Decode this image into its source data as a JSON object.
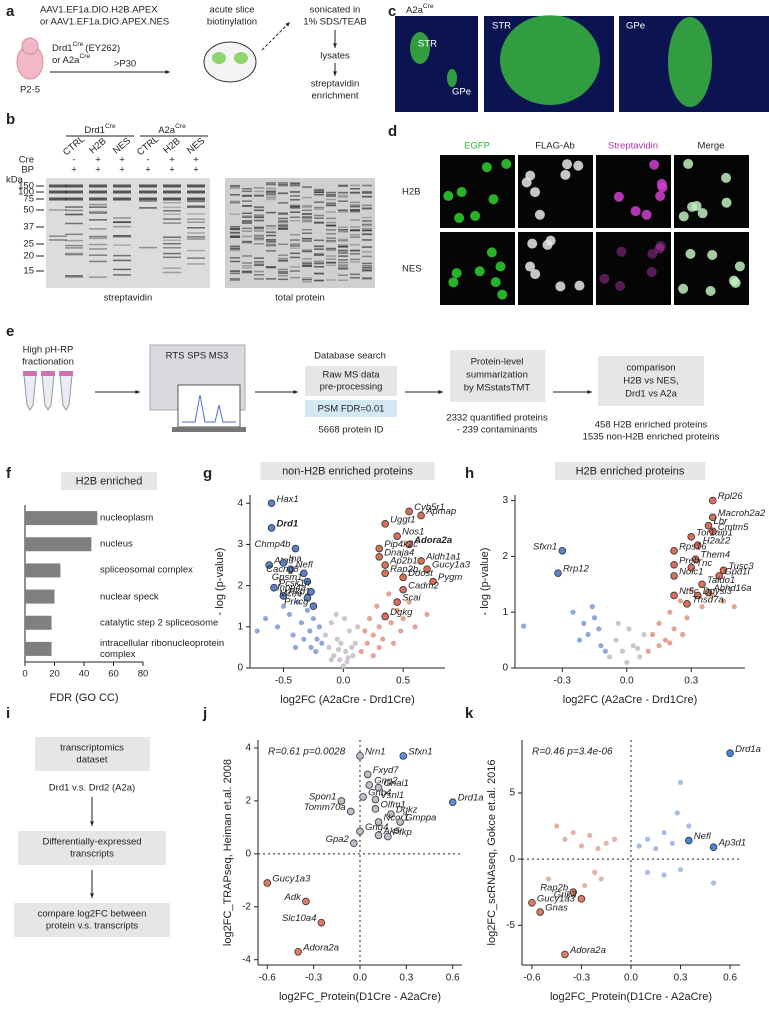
{
  "panel_letters": [
    "a",
    "b",
    "c",
    "d",
    "e",
    "f",
    "g",
    "h",
    "i",
    "j",
    "k"
  ],
  "a": {
    "vectors": [
      "AAV1.EF1a.DIO.H2B.APEX",
      "or AAV1.EF1a.DIO.APEX.NES"
    ],
    "mouse_lines": [
      {
        "text": "Drd1",
        "sup": "Cre",
        "after": "(EY262)"
      },
      {
        "text": "or A2a",
        "sup": "Cre"
      }
    ],
    "age": "P2-5",
    "adult_age": ">P30",
    "slice_step": [
      "acute slice",
      "biotinylation"
    ],
    "lysis_step": [
      "sonicated in",
      "1% SDS/TEAB"
    ],
    "lysate_step": "lysates",
    "enrichment_step": [
      "streptavidin",
      "enrichment"
    ]
  },
  "b": {
    "groups": [
      {
        "text": "Drd1",
        "sup": "Cre"
      },
      {
        "text": "A2a",
        "sup": "Cre"
      }
    ],
    "lanes": [
      "CTRL",
      "H2B",
      "NES",
      "CTRL",
      "H2B",
      "NES"
    ],
    "row_labels": [
      "Cre",
      "BP"
    ],
    "cre": [
      "-",
      "+",
      "+",
      "-",
      "+",
      "+"
    ],
    "bp": [
      "+",
      "+",
      "+",
      "+",
      "+",
      "+"
    ],
    "unit": "kDa",
    "markers": [
      150,
      100,
      75,
      50,
      37,
      25,
      20,
      15
    ],
    "captions": [
      "streptavidin",
      "total protein"
    ]
  },
  "c": {
    "line": {
      "text": "A2a",
      "sup": "Cre"
    },
    "labels": [
      "STR",
      "GPe",
      "STR",
      "GPe"
    ]
  },
  "d": {
    "columns": [
      "EGFP",
      "FLAG-Ab",
      "Streptavidin",
      "Merge"
    ],
    "rows": [
      "H2B",
      "NES"
    ]
  },
  "e": {
    "fractionation": [
      "High pH-RP",
      "fractionation"
    ],
    "instrument": "RTS SPS MS3",
    "search_title": "Database search",
    "preprocessing": [
      "Raw MS data",
      "pre-processing"
    ],
    "fdr": "PSM FDR=0.01",
    "protein_id": "5668 protein ID",
    "summarization": [
      "Protein-level",
      "summarization",
      "by MSstatsTMT"
    ],
    "quantified": [
      "2332 quantified proteins",
      "- 239 contaminants"
    ],
    "comparison": [
      "comparison",
      "H2B vs NES,",
      "Drd1 vs A2a"
    ],
    "results": [
      "458 H2B enriched proteins",
      "1535 non-H2B enriched proteins"
    ]
  },
  "i": {
    "dataset": [
      "transcriptomics",
      "dataset"
    ],
    "contrast": "Drd1 v.s. Drd2 (A2a)",
    "de": [
      "Differentially-expressed",
      "transcripts"
    ],
    "compare": [
      "compare log2FC between",
      "protein v.s. transcripts"
    ]
  },
  "chart_data": [
    {
      "type": "hbar",
      "title": "H2B enriched",
      "x_label": "FDR (GO CC)",
      "categories": [
        "nucleoplasm",
        "nucleus",
        "spliceosomal complex",
        "nuclear speck",
        "catalytic step 2 spliceosome",
        "intracellular ribonucleoprotein complex"
      ],
      "values": [
        49,
        45,
        24,
        20,
        18,
        18
      ],
      "color": "#7f7f7f",
      "xlim": [
        0,
        80
      ],
      "xticks": [
        0,
        20,
        40,
        60,
        80
      ]
    },
    {
      "type": "scatter",
      "title": "non-H2B enriched proteins",
      "x_label": "log2FC (A2aCre - Drd1Cre)",
      "y_label": "- log (p-value)",
      "xlim": [
        -0.78,
        0.85
      ],
      "xticks": [
        -0.5,
        {
          "value": 0,
          "label": "0.0"
        },
        0.5
      ],
      "ylim": [
        0,
        4.2
      ],
      "yticks": [
        0,
        1,
        2,
        3,
        4
      ],
      "series": [
        {
          "color": "#8fa8dc",
          "x": [
            -0.72,
            -0.65,
            -0.55,
            -0.5,
            -0.45,
            -0.42,
            -0.38,
            -0.35,
            -0.3,
            -0.28,
            -0.25,
            -0.22,
            -0.2,
            -0.18,
            -0.4,
            -0.33,
            -0.27,
            -0.23
          ],
          "y": [
            0.9,
            1.2,
            1.0,
            1.5,
            1.3,
            0.8,
            1.6,
            1.1,
            1.4,
            0.9,
            1.2,
            0.7,
            1.0,
            0.6,
            0.5,
            0.7,
            0.5,
            0.4
          ]
        },
        {
          "color": "#cdc6cf",
          "x": [
            -0.15,
            -0.12,
            -0.1,
            -0.08,
            -0.05,
            -0.03,
            0,
            0.02,
            0.05,
            0.08,
            0.1,
            0.12,
            -0.1,
            -0.06,
            0.03,
            0.07,
            -0.02,
            0.01,
            0.04,
            -0.04
          ],
          "y": [
            0.8,
            0.5,
            1.1,
            0.3,
            0.7,
            0.2,
            0.05,
            0.4,
            0.9,
            0.3,
            0.6,
            1.0,
            0.2,
            1.3,
            0.15,
            0.5,
            0.6,
            1.2,
            0.25,
            0.45
          ]
        },
        {
          "color": "#e3a493",
          "x": [
            0.15,
            0.18,
            0.2,
            0.22,
            0.25,
            0.28,
            0.3,
            0.33,
            0.35,
            0.38,
            0.4,
            0.45,
            0.5,
            0.55,
            0.6,
            0.7,
            0.25,
            0.3,
            0.42,
            0.48
          ],
          "y": [
            0.4,
            0.9,
            0.6,
            1.2,
            0.8,
            1.5,
            1.0,
            0.7,
            1.3,
            1.8,
            1.1,
            1.4,
            1.2,
            1.6,
            1.0,
            1.3,
            0.3,
            0.5,
            0.6,
            0.9
          ]
        },
        {
          "color": "#5b82c9",
          "labels": [
            "Hax1",
            "Drd1",
            "Chmp4b",
            "Atg3",
            "Ina",
            "Nefl",
            "Cacng8",
            "Gpsm1",
            "Pcsk1n",
            "Inpp4a",
            "Pkp1",
            "Mcee",
            "Prkcg"
          ],
          "bold": [
            1
          ],
          "x": [
            -0.6,
            -0.6,
            -0.4,
            -0.62,
            -0.5,
            -0.44,
            -0.33,
            -0.3,
            -0.58,
            -0.27,
            -0.5,
            -0.3,
            -0.25
          ],
          "y": [
            4.0,
            3.4,
            2.9,
            2.5,
            2.55,
            2.4,
            2.3,
            2.1,
            1.95,
            1.85,
            1.75,
            1.7,
            1.5
          ]
        },
        {
          "color": "#d96f5b",
          "labels": [
            "Cyb5r1",
            "Apmap",
            "Uggt1",
            "Nos1",
            "Adora2a",
            "Pip4k2c",
            "Aldh1a1",
            "Dnaja4",
            "Ap2b1",
            "Gucy1a3",
            "Rap2b",
            "Ddost",
            "Pygm",
            "Cadm2",
            "Scai",
            "Dgkg"
          ],
          "bold": [
            4
          ],
          "x": [
            0.55,
            0.65,
            0.35,
            0.45,
            0.55,
            0.3,
            0.65,
            0.3,
            0.35,
            0.7,
            0.35,
            0.5,
            0.75,
            0.5,
            0.45,
            0.35
          ],
          "y": [
            3.8,
            3.7,
            3.5,
            3.2,
            3.0,
            2.9,
            2.6,
            2.7,
            2.5,
            2.4,
            2.3,
            2.2,
            2.1,
            1.9,
            1.6,
            1.25
          ]
        }
      ]
    },
    {
      "type": "scatter",
      "title": "H2B enriched proteins",
      "x_label": "log2FC (A2aCre - Drd1Cre)",
      "y_label": "- log (p-value)",
      "xlim": [
        -0.52,
        0.55
      ],
      "xticks": [
        -0.3,
        {
          "value": 0,
          "label": "0.0"
        },
        0.3
      ],
      "ylim": [
        0,
        3.1
      ],
      "yticks": [
        0,
        1,
        2,
        3
      ],
      "series": [
        {
          "color": "#8fa8dc",
          "x": [
            -0.48,
            -0.25,
            -0.2,
            -0.18,
            -0.15,
            -0.12,
            -0.1,
            -0.22,
            -0.16,
            -0.13
          ],
          "y": [
            0.75,
            1.0,
            0.8,
            0.6,
            0.9,
            0.4,
            0.3,
            0.5,
            1.1,
            0.7
          ]
        },
        {
          "color": "#cdc6cf",
          "x": [
            -0.08,
            -0.05,
            -0.02,
            0,
            0.03,
            0.06,
            0.08,
            -0.04,
            0.01,
            0.05
          ],
          "y": [
            0.2,
            0.5,
            0.3,
            0.1,
            0.4,
            0.2,
            0.6,
            0.8,
            0.7,
            0.35
          ]
        },
        {
          "color": "#e3a493",
          "x": [
            0.1,
            0.12,
            0.15,
            0.18,
            0.2,
            0.22,
            0.25,
            0.28,
            0.3,
            0.35,
            0.4,
            0.45,
            0.5,
            0.15,
            0.2,
            0.26
          ],
          "y": [
            0.3,
            0.6,
            0.8,
            0.5,
            1.0,
            0.7,
            1.2,
            0.9,
            1.4,
            1.1,
            1.3,
            1.2,
            1.1,
            0.4,
            0.45,
            0.6
          ]
        },
        {
          "color": "#5b82c9",
          "labels": [
            "Sfxn1",
            "Rrp12"
          ],
          "x": [
            -0.3,
            -0.32
          ],
          "y": [
            2.1,
            1.7
          ]
        },
        {
          "color": "#d96f5b",
          "labels": [
            "Rpl26",
            "Macroh2a2",
            "Lbr",
            "Cmtm5",
            "Tor1aip1",
            "H2az2",
            "Rps16",
            "Them4",
            "Preb",
            "Tnc",
            "Tusc3",
            "Gpd1l",
            "Nolc1",
            "Taldo1",
            "Nt5c",
            "Abhd16a",
            "Dpysl3",
            "Thsd7a"
          ],
          "x": [
            0.4,
            0.4,
            0.38,
            0.4,
            0.3,
            0.33,
            0.22,
            0.32,
            0.22,
            0.3,
            0.45,
            0.43,
            0.22,
            0.35,
            0.22,
            0.38,
            0.33,
            0.28
          ],
          "y": [
            3.0,
            2.7,
            2.55,
            2.45,
            2.35,
            2.2,
            2.1,
            1.95,
            1.85,
            1.8,
            1.75,
            1.65,
            1.65,
            1.5,
            1.3,
            1.35,
            1.3,
            1.15
          ]
        }
      ]
    },
    {
      "type": "scatter",
      "x_label": "log2FC_Protein(D1Cre - A2aCre)",
      "y_label": "log2FC_TRAPseq, Heiman et.al. 2008",
      "annotation": "R=0.61 p=0.0028",
      "zero_lines": true,
      "xlim": [
        -0.66,
        0.66
      ],
      "xticks": [
        -0.6,
        -0.3,
        {
          "value": 0,
          "label": "0.0"
        },
        0.3,
        0.6
      ],
      "ylim": [
        -4.2,
        4.3
      ],
      "yticks": [
        -4,
        -2,
        0,
        2,
        4
      ],
      "series": [
        {
          "color": "#e07a66",
          "labels": [
            "Gucy1a3",
            "Adk",
            "Slc10a4",
            "Adora2a"
          ],
          "x": [
            -0.6,
            -0.35,
            -0.25,
            -0.4
          ],
          "y": [
            -1.1,
            -1.8,
            -2.6,
            -3.7
          ]
        },
        {
          "color": "#c4bccd",
          "labels": [
            "Nrn1",
            "Fxyd7",
            "Gng2",
            "Gnai1",
            "Gnb4",
            "Vsnl1",
            "Spon1",
            "Olfm1",
            "Tomm70a",
            "Dgkz",
            "Ncor1",
            "Gmppa",
            "Gng4",
            "Ak5",
            "Pfkp",
            "Gpa2"
          ],
          "x": [
            0.0,
            0.05,
            0.06,
            0.12,
            0.02,
            0.1,
            -0.12,
            0.1,
            -0.06,
            0.2,
            0.12,
            0.26,
            0.0,
            0.12,
            0.18,
            -0.04
          ],
          "y": [
            3.7,
            3.0,
            2.6,
            2.5,
            2.15,
            2.05,
            2.0,
            1.7,
            1.6,
            1.5,
            1.2,
            1.2,
            0.85,
            0.7,
            0.65,
            0.4
          ]
        },
        {
          "color": "#5b8fd6",
          "labels": [
            "Sfxn1",
            "Drd1a"
          ],
          "x": [
            0.28,
            0.6
          ],
          "y": [
            3.7,
            1.95
          ]
        }
      ]
    },
    {
      "type": "scatter",
      "x_label": "log2FC_Protein(D1Cre - A2aCre)",
      "y_label": "log2FC_scRNAseq, Gokce et.al. 2016",
      "annotation": "R=0.46 p=3.4e-06",
      "zero_lines": true,
      "xlim": [
        -0.66,
        0.66
      ],
      "xticks": [
        -0.6,
        -0.3,
        {
          "value": 0,
          "label": "0.0"
        },
        0.3,
        0.6
      ],
      "ylim": [
        -8,
        9
      ],
      "yticks": [
        -5,
        0,
        5
      ],
      "series": [
        {
          "color": "#e3b3a8",
          "x": [
            -0.45,
            -0.4,
            -0.35,
            -0.3,
            -0.25,
            -0.2,
            -0.15,
            -0.1,
            -0.5,
            -0.28,
            -0.22,
            -0.18
          ],
          "y": [
            2.5,
            1.5,
            2.0,
            1.0,
            1.8,
            0.8,
            1.2,
            1.5,
            -1.5,
            -2.0,
            -1.0,
            -1.5
          ]
        },
        {
          "color": "#a9bde3",
          "x": [
            0.05,
            0.1,
            0.15,
            0.2,
            0.25,
            0.3,
            0.35,
            0.1,
            0.2,
            0.3,
            0.5,
            0.28
          ],
          "y": [
            1.0,
            1.5,
            0.8,
            2.0,
            1.2,
            5.8,
            2.5,
            -1.0,
            -1.2,
            -0.8,
            -1.8,
            3.5
          ]
        },
        {
          "color": "#e07a66",
          "labels": [
            "Rap2b",
            "Gucy1a3",
            "Grik3",
            "Gnas",
            "Adora2a"
          ],
          "x": [
            -0.35,
            -0.6,
            -0.3,
            -0.55,
            -0.4
          ],
          "y": [
            -2.5,
            -3.3,
            -3.0,
            -4.0,
            -7.2
          ]
        },
        {
          "color": "#3f86dc",
          "labels": [
            "Drd1a",
            "Nefl",
            "Ap3d1"
          ],
          "x": [
            0.6,
            0.35,
            0.5
          ],
          "y": [
            8.0,
            1.4,
            0.9
          ]
        }
      ]
    }
  ]
}
